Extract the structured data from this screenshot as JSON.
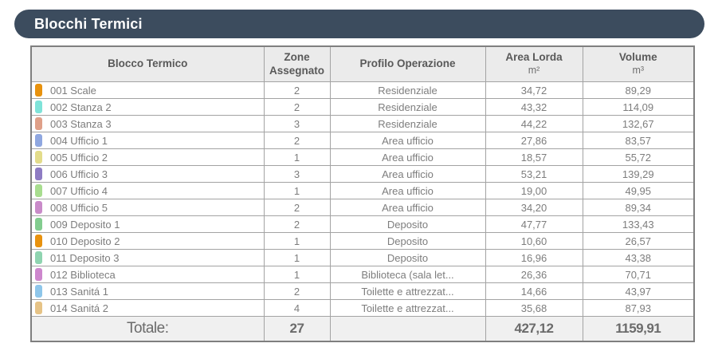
{
  "title_bar": {
    "title": "Blocchi Termici",
    "bg_color": "#3c4c5e"
  },
  "table": {
    "columns": [
      {
        "label": "Blocco Termico",
        "unit": ""
      },
      {
        "label": "Zone Assegnato",
        "unit": ""
      },
      {
        "label": "Profilo Operazione",
        "unit": ""
      },
      {
        "label": "Area Lorda",
        "unit": "m²"
      },
      {
        "label": "Volume",
        "unit": "m³"
      }
    ],
    "rows": [
      {
        "swatch": "#e8920e",
        "name": "001 Scale",
        "zone": "2",
        "profile": "Residenziale",
        "area": "34,72",
        "volume": "89,29"
      },
      {
        "swatch": "#7fe3d9",
        "name": "002 Stanza 2",
        "zone": "2",
        "profile": "Residenziale",
        "area": "43,32",
        "volume": "114,09"
      },
      {
        "swatch": "#dfa089",
        "name": "003 Stanza 3",
        "zone": "3",
        "profile": "Residenziale",
        "area": "44,22",
        "volume": "132,67"
      },
      {
        "swatch": "#8fa7e0",
        "name": "004 Ufficio 1",
        "zone": "2",
        "profile": "Area ufficio",
        "area": "27,86",
        "volume": "83,57"
      },
      {
        "swatch": "#e3dc8a",
        "name": "005 Ufficio 2",
        "zone": "1",
        "profile": "Area ufficio",
        "area": "18,57",
        "volume": "55,72"
      },
      {
        "swatch": "#8e7cc3",
        "name": "006 Ufficio 3",
        "zone": "3",
        "profile": "Area ufficio",
        "area": "53,21",
        "volume": "139,29"
      },
      {
        "swatch": "#a8dd8f",
        "name": "007 Ufficio 4",
        "zone": "1",
        "profile": "Area ufficio",
        "area": "19,00",
        "volume": "49,95"
      },
      {
        "swatch": "#c98bc9",
        "name": "008 Ufficio 5",
        "zone": "2",
        "profile": "Area ufficio",
        "area": "34,20",
        "volume": "89,34"
      },
      {
        "swatch": "#82cc8f",
        "name": "009 Deposito 1",
        "zone": "2",
        "profile": "Deposito",
        "area": "47,77",
        "volume": "133,43"
      },
      {
        "swatch": "#e8920e",
        "name": "010 Deposito 2",
        "zone": "1",
        "profile": "Deposito",
        "area": "10,60",
        "volume": "26,57"
      },
      {
        "swatch": "#8fd4b0",
        "name": "011 Deposito 3",
        "zone": "1",
        "profile": "Deposito",
        "area": "16,96",
        "volume": "43,38"
      },
      {
        "swatch": "#cd87cd",
        "name": "012 Biblioteca",
        "zone": "1",
        "profile": "Biblioteca (sala let...",
        "area": "26,36",
        "volume": "70,71"
      },
      {
        "swatch": "#8ec6ea",
        "name": "013 Sanitá 1",
        "zone": "2",
        "profile": "Toilette e attrezzat...",
        "area": "14,66",
        "volume": "43,97"
      },
      {
        "swatch": "#e6c386",
        "name": "014 Sanitá 2",
        "zone": "4",
        "profile": "Toilette e attrezzat...",
        "area": "35,68",
        "volume": "87,93"
      }
    ],
    "total": {
      "label": "Totale:",
      "zone": "27",
      "profile": "",
      "area": "427,12",
      "volume": "1159,91"
    }
  }
}
